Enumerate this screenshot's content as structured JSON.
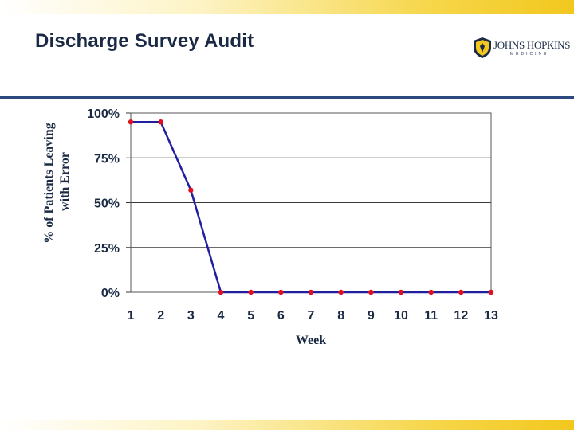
{
  "slide": {
    "title": "Discharge Survey Audit",
    "logo": {
      "name": "JOHNS HOPKINS",
      "subtitle": "MEDICINE",
      "icon": "shield-icon"
    },
    "colors": {
      "title": "#1b2a44",
      "rule": "#2c4a80",
      "band": "#f2c81e"
    }
  },
  "chart_data": {
    "type": "line",
    "xlabel": "Week",
    "ylabel": "% of Patients Leaving with Error",
    "ylabel_lines": [
      "% of Patients Leaving",
      "with Error"
    ],
    "x": [
      1,
      2,
      3,
      4,
      5,
      6,
      7,
      8,
      9,
      10,
      11,
      12,
      13
    ],
    "categories": [
      "1",
      "2",
      "3",
      "4",
      "5",
      "6",
      "7",
      "8",
      "9",
      "10",
      "11",
      "12",
      "13"
    ],
    "series": [
      {
        "values": [
          95,
          95,
          57,
          0,
          0,
          0,
          0,
          0,
          0,
          0,
          0,
          0,
          0
        ],
        "line_color": "#1f1fa0",
        "marker_color": "#e0101e"
      }
    ],
    "ylim": [
      0,
      100
    ],
    "yticks": [
      "0%",
      "25%",
      "50%",
      "75%",
      "100%"
    ],
    "ytick_values": [
      0,
      25,
      50,
      75,
      100
    ],
    "grid": true,
    "legend": "none"
  }
}
